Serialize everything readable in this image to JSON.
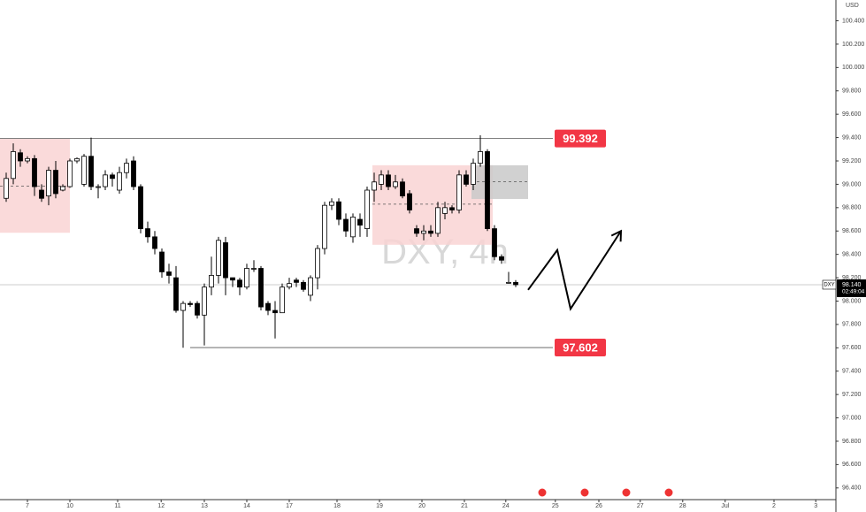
{
  "chart_data": {
    "type": "candlestick",
    "watermark": "DXY, 4h",
    "currency": "USD",
    "symbol": "DXY",
    "up_color": "#ffffff",
    "down_color": "#000000",
    "grid": false,
    "x": [
      -3,
      -2,
      -1,
      0,
      1,
      2,
      3,
      4,
      5,
      6,
      7,
      8,
      9,
      10,
      11,
      12,
      13,
      14,
      15,
      16,
      17,
      18,
      19,
      20,
      21,
      22,
      23,
      24,
      25,
      26,
      27,
      28,
      29,
      30,
      31,
      32,
      33,
      34,
      35,
      36,
      37,
      38,
      39,
      40,
      41,
      42,
      43,
      44,
      45,
      46,
      47,
      48,
      49,
      50,
      51,
      52,
      53,
      54,
      55,
      56,
      57,
      58,
      59,
      60,
      61,
      62,
      63,
      64,
      65,
      66,
      67,
      68,
      69
    ],
    "open": [
      98.88,
      99.05,
      99.27,
      99.2,
      99.22,
      98.95,
      98.9,
      99.12,
      98.95,
      98.98,
      99.2,
      99.0,
      99.24,
      98.98,
      98.98,
      99.08,
      98.95,
      99.1,
      99.2,
      98.98,
      98.62,
      98.55,
      98.42,
      98.25,
      98.2,
      97.92,
      97.98,
      97.98,
      97.88,
      98.12,
      98.22,
      98.5,
      98.2,
      98.18,
      98.12,
      98.28,
      98.28,
      97.98,
      97.92,
      97.9,
      98.12,
      98.18,
      98.16,
      98.05,
      98.2,
      98.45,
      98.82,
      98.85,
      98.7,
      98.55,
      98.7,
      98.62,
      98.95,
      99.0,
      99.08,
      98.98,
      99.02,
      98.92,
      98.62,
      98.58,
      98.6,
      98.58,
      98.75,
      98.8,
      98.78,
      99.08,
      99.0,
      99.18,
      99.28,
      98.62,
      98.38,
      98.16,
      98.16
    ],
    "high": [
      99.1,
      99.35,
      99.3,
      99.24,
      99.25,
      99.0,
      99.15,
      99.2,
      99.0,
      99.22,
      99.23,
      99.26,
      99.4,
      99.0,
      99.12,
      99.1,
      99.15,
      99.22,
      99.24,
      99.0,
      98.68,
      98.6,
      98.45,
      98.32,
      98.3,
      98.0,
      98.0,
      98.0,
      98.15,
      98.38,
      98.55,
      98.55,
      98.2,
      98.2,
      98.32,
      98.35,
      98.3,
      98.0,
      98.0,
      98.15,
      98.2,
      98.2,
      98.18,
      98.22,
      98.48,
      98.85,
      98.88,
      98.88,
      98.75,
      98.75,
      98.75,
      98.98,
      99.1,
      99.12,
      99.12,
      99.08,
      99.05,
      98.95,
      98.65,
      98.65,
      98.65,
      98.85,
      98.85,
      98.82,
      99.12,
      99.12,
      99.22,
      99.42,
      99.3,
      98.65,
      98.4,
      98.25,
      98.18
    ],
    "low": [
      98.85,
      99.0,
      99.15,
      99.18,
      98.9,
      98.85,
      98.82,
      98.88,
      98.94,
      98.97,
      99.18,
      98.98,
      98.95,
      98.88,
      98.95,
      98.98,
      98.92,
      99.05,
      98.95,
      98.58,
      98.5,
      98.4,
      98.2,
      98.15,
      97.9,
      97.6,
      97.95,
      97.85,
      97.62,
      98.05,
      98.15,
      98.05,
      98.12,
      98.05,
      98.1,
      98.25,
      97.92,
      97.88,
      97.68,
      97.9,
      98.1,
      98.12,
      98.08,
      98.0,
      98.1,
      98.4,
      98.78,
      98.65,
      98.55,
      98.5,
      98.55,
      98.55,
      98.85,
      98.95,
      98.95,
      98.96,
      98.88,
      98.75,
      98.55,
      98.52,
      98.55,
      98.55,
      98.7,
      98.75,
      98.75,
      98.98,
      98.95,
      99.15,
      98.6,
      98.35,
      98.32,
      98.15,
      98.12
    ],
    "close": [
      99.05,
      99.28,
      99.2,
      99.22,
      98.98,
      98.88,
      99.12,
      98.92,
      98.98,
      99.2,
      99.22,
      99.24,
      98.98,
      98.98,
      99.08,
      99.05,
      99.1,
      99.18,
      98.98,
      98.62,
      98.55,
      98.45,
      98.25,
      98.22,
      97.92,
      97.98,
      97.97,
      97.88,
      98.12,
      98.22,
      98.52,
      98.2,
      98.18,
      98.12,
      98.28,
      98.28,
      97.95,
      97.92,
      97.9,
      98.12,
      98.15,
      98.16,
      98.1,
      98.2,
      98.45,
      98.82,
      98.85,
      98.7,
      98.6,
      98.72,
      98.65,
      98.95,
      99.02,
      99.08,
      98.98,
      99.02,
      98.9,
      98.78,
      98.58,
      98.6,
      98.58,
      98.8,
      98.8,
      98.78,
      99.08,
      99.0,
      99.18,
      99.28,
      98.62,
      98.38,
      98.35,
      98.16,
      98.14
    ],
    "xlim": [
      -3.875,
      114.25
    ],
    "ylim": [
      96.3,
      100.578
    ],
    "xticks": [
      {
        "value": 0,
        "label": "7"
      },
      {
        "value": 6,
        "label": "10"
      },
      {
        "value": 12.75,
        "label": "11"
      },
      {
        "value": 18.9,
        "label": "12"
      },
      {
        "value": 25,
        "label": "13"
      },
      {
        "value": 31,
        "label": "14"
      },
      {
        "value": 37,
        "label": "17"
      },
      {
        "value": 43.75,
        "label": "18"
      },
      {
        "value": 49.75,
        "label": "19"
      },
      {
        "value": 55.75,
        "label": "20"
      },
      {
        "value": 61.75,
        "label": "21"
      },
      {
        "value": 67.6,
        "label": "24"
      },
      {
        "value": 74.6,
        "label": "25"
      },
      {
        "value": 80.75,
        "label": "26"
      },
      {
        "value": 86.6,
        "label": "27"
      },
      {
        "value": 92.6,
        "label": "28"
      },
      {
        "value": 98.6,
        "label": "Jul"
      },
      {
        "value": 105.5,
        "label": "2"
      },
      {
        "value": 111.4,
        "label": "3"
      }
    ],
    "yticks": [
      {
        "value": 96.4,
        "label": "96.400"
      },
      {
        "value": 96.6,
        "label": "96.600"
      },
      {
        "value": 96.8,
        "label": "96.800"
      },
      {
        "value": 97.0,
        "label": "97.000"
      },
      {
        "value": 97.2,
        "label": "97.200"
      },
      {
        "value": 97.4,
        "label": "97.400"
      },
      {
        "value": 97.6,
        "label": "97.600"
      },
      {
        "value": 97.8,
        "label": "97.800"
      },
      {
        "value": 98.0,
        "label": "98.000"
      },
      {
        "value": 98.2,
        "label": "98.200"
      },
      {
        "value": 98.4,
        "label": "98.400"
      },
      {
        "value": 98.6,
        "label": "98.600"
      },
      {
        "value": 98.8,
        "label": "98.800"
      },
      {
        "value": 99.0,
        "label": "99.000"
      },
      {
        "value": 99.2,
        "label": "99.200"
      },
      {
        "value": 99.4,
        "label": "99.400"
      },
      {
        "value": 99.6,
        "label": "99.600"
      },
      {
        "value": 99.8,
        "label": "99.800"
      },
      {
        "value": 100.0,
        "label": "100.000"
      },
      {
        "value": 100.2,
        "label": "100.200"
      },
      {
        "value": 100.4,
        "label": "100.400"
      }
    ],
    "last_price": {
      "value": 98.14,
      "label": "98.140",
      "countdown": "02:49:04"
    },
    "levels": [
      {
        "value": 99.392,
        "label": "99.392",
        "x_start": -3.875,
        "x_end": 74.25
      },
      {
        "value": 97.602,
        "label": "97.602",
        "x_start": 23,
        "x_end": 74.25
      }
    ],
    "zones": [
      {
        "x_start": -3.875,
        "x_end": 6,
        "top": 99.392,
        "bottom": 98.585,
        "mid": 98.985,
        "color": "#f9d3d3"
      },
      {
        "x_start": 48.75,
        "x_end": 65.75,
        "top": 99.163,
        "bottom": 98.482,
        "mid": 98.83,
        "color": "#f9d3d3"
      },
      {
        "x_start": 62.75,
        "x_end": 70.75,
        "top": 99.163,
        "bottom": 98.874,
        "mid": 99.022,
        "color": "#c9c9c9"
      }
    ],
    "projection": {
      "x": [
        70.75,
        74.875,
        76.75,
        83.875
      ],
      "y": [
        98.096,
        98.437,
        97.933,
        98.6
      ]
    }
  }
}
